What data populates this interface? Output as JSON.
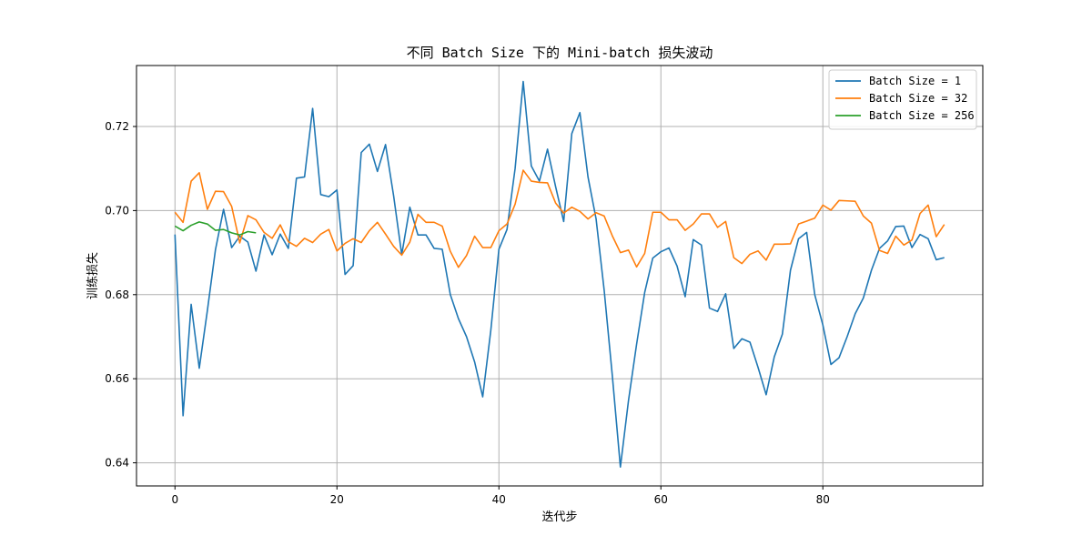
{
  "chart_data": {
    "type": "line",
    "title": "不同 Batch Size 下的 Mini-batch 损失波动",
    "xlabel": "迭代步",
    "ylabel": "训练损失",
    "xlim": [
      -4.75,
      99.75
    ],
    "ylim": [
      0.6345,
      0.7345
    ],
    "xticks": [
      0,
      20,
      40,
      60,
      80
    ],
    "yticks": [
      0.64,
      0.66,
      0.68,
      0.7,
      0.72
    ],
    "grid": true,
    "legend_position": "top-right",
    "series": [
      {
        "name": "Batch Size = 1",
        "color": "#1f77b4",
        "x": [
          0,
          1,
          2,
          3,
          4,
          5,
          6,
          7,
          8,
          9,
          10,
          11,
          12,
          13,
          14,
          15,
          16,
          17,
          18,
          19,
          20,
          21,
          22,
          23,
          24,
          25,
          26,
          27,
          28,
          29,
          30,
          31,
          32,
          33,
          34,
          35,
          36,
          37,
          38,
          39,
          40,
          41,
          42,
          43,
          44,
          45,
          46,
          47,
          48,
          49,
          50,
          51,
          52,
          53,
          54,
          55,
          56,
          57,
          58,
          59,
          60,
          61,
          62,
          63,
          64,
          65,
          66,
          67,
          68,
          69,
          70,
          71,
          72,
          73,
          74,
          75,
          76,
          77,
          78,
          79,
          80,
          81,
          82,
          83,
          84,
          85,
          86,
          87,
          88,
          89,
          90,
          91,
          92,
          93,
          94,
          95
        ],
        "y": [
          0.6943,
          0.6512,
          0.6777,
          0.6625,
          0.6762,
          0.6907,
          0.7003,
          0.6912,
          0.6939,
          0.6925,
          0.6856,
          0.6942,
          0.6895,
          0.6944,
          0.691,
          0.7077,
          0.708,
          0.7243,
          0.7038,
          0.7033,
          0.7049,
          0.6848,
          0.6869,
          0.7138,
          0.7158,
          0.7093,
          0.7157,
          0.7035,
          0.6895,
          0.7008,
          0.6942,
          0.6942,
          0.691,
          0.6908,
          0.68,
          0.6743,
          0.67,
          0.664,
          0.6557,
          0.6715,
          0.6908,
          0.6955,
          0.71,
          0.7307,
          0.7106,
          0.707,
          0.7146,
          0.7057,
          0.6974,
          0.7183,
          0.7233,
          0.708,
          0.698,
          0.681,
          0.6608,
          0.639,
          0.6548,
          0.6682,
          0.6805,
          0.6887,
          0.6902,
          0.6911,
          0.6868,
          0.6795,
          0.6931,
          0.6918,
          0.6768,
          0.676,
          0.6802,
          0.6672,
          0.6695,
          0.6687,
          0.6627,
          0.6562,
          0.6652,
          0.6706,
          0.6858,
          0.6933,
          0.6948,
          0.68,
          0.6728,
          0.6634,
          0.665,
          0.67,
          0.6755,
          0.6792,
          0.6858,
          0.691,
          0.6928,
          0.6962,
          0.6963,
          0.6912,
          0.6943,
          0.6933,
          0.6883,
          0.6888
        ]
      },
      {
        "name": "Batch Size = 32",
        "color": "#ff7f0e",
        "x": [
          0,
          1,
          2,
          3,
          4,
          5,
          6,
          7,
          8,
          9,
          10,
          11,
          12,
          13,
          14,
          15,
          16,
          17,
          18,
          19,
          20,
          21,
          22,
          23,
          24,
          25,
          26,
          27,
          28,
          29,
          30,
          31,
          32,
          33,
          34,
          35,
          36,
          37,
          38,
          39,
          40,
          41,
          42,
          43,
          44,
          45,
          46,
          47,
          48,
          49,
          50,
          51,
          52,
          53,
          54,
          55,
          56,
          57,
          58,
          59,
          60,
          61,
          62,
          63,
          64,
          65,
          66,
          67,
          68,
          69,
          70,
          71,
          72,
          73,
          74,
          75,
          76,
          77,
          78,
          79,
          80,
          81,
          82,
          83,
          84,
          85,
          86,
          87,
          88,
          89,
          90,
          91,
          92,
          93,
          94,
          95
        ],
        "y": [
          0.6996,
          0.6972,
          0.707,
          0.709,
          0.7003,
          0.7046,
          0.7045,
          0.701,
          0.6923,
          0.6988,
          0.6978,
          0.6948,
          0.6934,
          0.6966,
          0.6926,
          0.6915,
          0.6934,
          0.6924,
          0.6944,
          0.6955,
          0.6904,
          0.6922,
          0.6933,
          0.6924,
          0.6952,
          0.6972,
          0.6944,
          0.6915,
          0.6894,
          0.6925,
          0.6991,
          0.6972,
          0.6972,
          0.6963,
          0.6903,
          0.6865,
          0.6893,
          0.6939,
          0.6912,
          0.6912,
          0.6952,
          0.6968,
          0.7015,
          0.7096,
          0.707,
          0.7067,
          0.7066,
          0.7018,
          0.6994,
          0.7008,
          0.6998,
          0.698,
          0.6995,
          0.6987,
          0.694,
          0.69,
          0.6906,
          0.6866,
          0.6898,
          0.6996,
          0.6996,
          0.6978,
          0.6978,
          0.6953,
          0.6968,
          0.6992,
          0.6992,
          0.696,
          0.6974,
          0.6888,
          0.6874,
          0.6896,
          0.6904,
          0.6882,
          0.692,
          0.692,
          0.6921,
          0.6968,
          0.6975,
          0.6982,
          0.7013,
          0.7001,
          0.7024,
          0.7023,
          0.7022,
          0.6987,
          0.697,
          0.6905,
          0.6898,
          0.6939,
          0.6918,
          0.693,
          0.6993,
          0.7013,
          0.6938,
          0.6967
        ]
      },
      {
        "name": "Batch Size = 256",
        "color": "#2ca02c",
        "x": [
          0,
          1,
          2,
          3,
          4,
          5,
          6,
          7,
          8,
          9,
          10
        ],
        "y": [
          0.6963,
          0.6952,
          0.6965,
          0.6973,
          0.6968,
          0.6953,
          0.6955,
          0.6947,
          0.6942,
          0.695,
          0.6947
        ]
      }
    ]
  }
}
